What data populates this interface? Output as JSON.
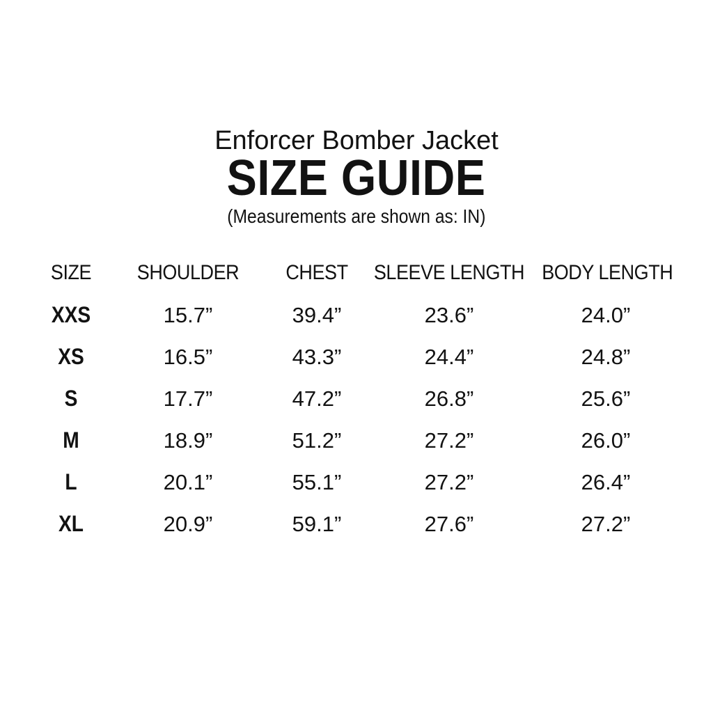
{
  "colors": {
    "background": "#ffffff",
    "text": "#121212"
  },
  "header": {
    "product_title": "Enforcer Bomber Jacket",
    "title": "SIZE GUIDE",
    "subtitle": "(Measurements are shown as: IN)"
  },
  "size_table": {
    "columns": [
      "SIZE",
      "SHOULDER",
      "CHEST",
      "SLEEVE LENGTH",
      "BODY LENGTH"
    ],
    "rows": [
      {
        "size": "XXS",
        "shoulder": "15.7”",
        "chest": "39.4”",
        "sleeve_length": "23.6”",
        "body_length": "24.0”"
      },
      {
        "size": "XS",
        "shoulder": "16.5”",
        "chest": "43.3”",
        "sleeve_length": "24.4”",
        "body_length": "24.8”"
      },
      {
        "size": "S",
        "shoulder": "17.7”",
        "chest": "47.2”",
        "sleeve_length": "26.8”",
        "body_length": "25.6”"
      },
      {
        "size": "M",
        "shoulder": "18.9”",
        "chest": "51.2”",
        "sleeve_length": "27.2”",
        "body_length": "26.0”"
      },
      {
        "size": "L",
        "shoulder": "20.1”",
        "chest": "55.1”",
        "sleeve_length": "27.2”",
        "body_length": "26.4”"
      },
      {
        "size": "XL",
        "shoulder": "20.9”",
        "chest": "59.1”",
        "sleeve_length": "27.6”",
        "body_length": "27.2”"
      }
    ]
  }
}
